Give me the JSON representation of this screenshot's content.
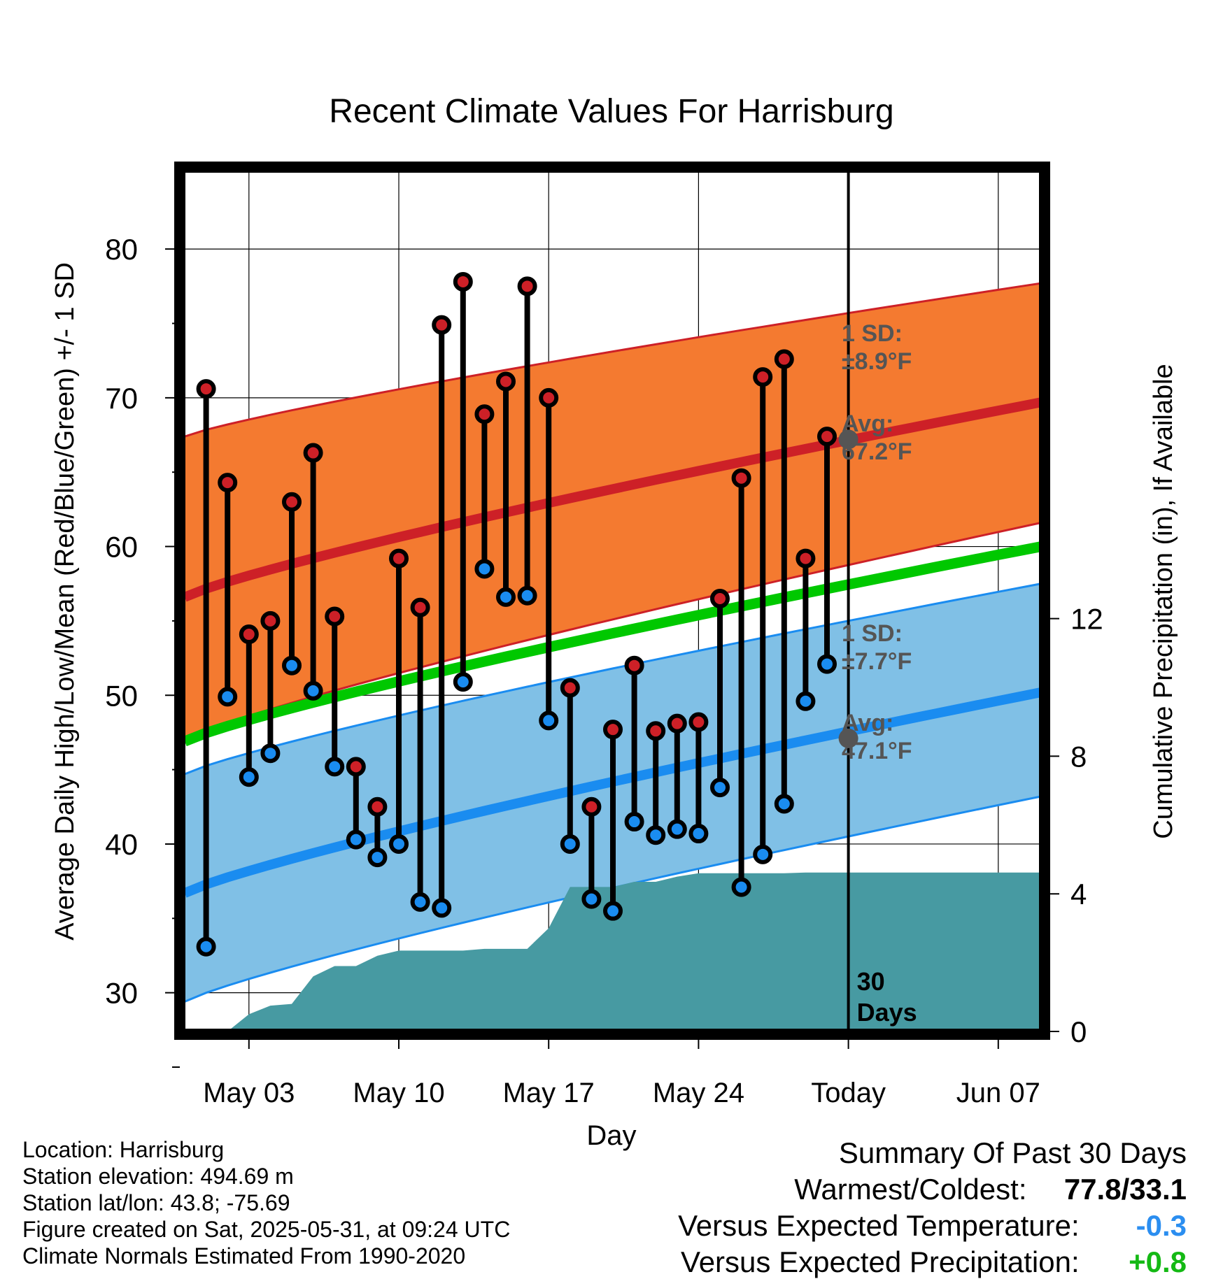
{
  "chart_data": {
    "type": "line",
    "title": "Recent Climate Values For Harrisburg",
    "xlabel": "Day",
    "ylabel_left": "Average Daily High/Low/Mean (Red/Blue/Green) +/- 1 SD",
    "ylabel_right": "Cumulative Precipitation (in), If Available",
    "x_range": [
      "2025-04-30",
      "2025-06-09"
    ],
    "ylim_left": [
      25,
      83
    ],
    "ylim_right": [
      0,
      23
    ],
    "x_ticks": [
      {
        "date": "2025-05-03",
        "label": "May 03"
      },
      {
        "date": "2025-05-10",
        "label": "May 10"
      },
      {
        "date": "2025-05-17",
        "label": "May 17"
      },
      {
        "date": "2025-05-24",
        "label": "May 24"
      },
      {
        "date": "2025-05-31",
        "label": "Today"
      },
      {
        "date": "2025-06-07",
        "label": "Jun 07"
      }
    ],
    "y_ticks_left": [
      30,
      40,
      50,
      60,
      70,
      80
    ],
    "y_ticks_right": [
      0,
      4,
      8,
      12
    ],
    "grid": true,
    "today": "2025-05-31",
    "today_label": "30 Days",
    "normals": {
      "dates": [
        "2025-04-30",
        "2025-06-09"
      ],
      "high_mean": [
        56.6,
        69.7
      ],
      "high_upper": [
        67.4,
        77.7
      ],
      "high_lower": [
        47.0,
        61.6
      ],
      "mean": [
        46.9,
        60.0
      ],
      "low_mean": [
        36.7,
        50.2
      ],
      "low_upper": [
        44.7,
        57.5
      ],
      "low_lower": [
        29.4,
        43.2
      ]
    },
    "normal_labels": {
      "high_sd": [
        "1 SD:",
        "±8.9°F"
      ],
      "high_avg": [
        "Avg:",
        "67.2°F"
      ],
      "low_sd": [
        "1 SD:",
        "±7.7°F"
      ],
      "low_avg": [
        "Avg:",
        "47.1°F"
      ]
    },
    "today_avg": {
      "high": 67.2,
      "low": 47.1
    },
    "series": [
      {
        "name": "High",
        "dates": [
          "2025-05-01",
          "2025-05-02",
          "2025-05-03",
          "2025-05-04",
          "2025-05-05",
          "2025-05-06",
          "2025-05-07",
          "2025-05-08",
          "2025-05-09",
          "2025-05-10",
          "2025-05-11",
          "2025-05-12",
          "2025-05-13",
          "2025-05-14",
          "2025-05-15",
          "2025-05-16",
          "2025-05-17",
          "2025-05-18",
          "2025-05-19",
          "2025-05-20",
          "2025-05-21",
          "2025-05-22",
          "2025-05-23",
          "2025-05-24",
          "2025-05-25",
          "2025-05-26",
          "2025-05-27",
          "2025-05-28",
          "2025-05-29",
          "2025-05-30"
        ],
        "values": [
          70.6,
          64.3,
          54.1,
          55.0,
          63.0,
          66.3,
          55.3,
          45.2,
          42.5,
          59.2,
          55.9,
          74.9,
          77.8,
          68.9,
          71.1,
          77.5,
          70.0,
          50.5,
          42.5,
          47.7,
          52.0,
          47.6,
          48.1,
          48.2,
          56.5,
          64.6,
          71.4,
          72.6,
          59.2,
          67.4
        ]
      },
      {
        "name": "Low",
        "dates": [
          "2025-05-01",
          "2025-05-02",
          "2025-05-03",
          "2025-05-04",
          "2025-05-05",
          "2025-05-06",
          "2025-05-07",
          "2025-05-08",
          "2025-05-09",
          "2025-05-10",
          "2025-05-11",
          "2025-05-12",
          "2025-05-13",
          "2025-05-14",
          "2025-05-15",
          "2025-05-16",
          "2025-05-17",
          "2025-05-18",
          "2025-05-19",
          "2025-05-20",
          "2025-05-21",
          "2025-05-22",
          "2025-05-23",
          "2025-05-24",
          "2025-05-25",
          "2025-05-26",
          "2025-05-27",
          "2025-05-28",
          "2025-05-29",
          "2025-05-30"
        ],
        "values": [
          33.1,
          49.9,
          44.5,
          46.1,
          52.0,
          50.3,
          45.2,
          40.3,
          39.1,
          40.0,
          36.1,
          35.7,
          50.9,
          58.5,
          56.6,
          56.7,
          48.3,
          40.0,
          36.3,
          35.5,
          41.5,
          40.6,
          41.0,
          40.7,
          43.8,
          37.1,
          39.3,
          42.7,
          49.6,
          52.1
        ]
      },
      {
        "name": "Cumulative Precipitation",
        "dates": [
          "2025-05-01",
          "2025-05-02",
          "2025-05-03",
          "2025-05-04",
          "2025-05-05",
          "2025-05-06",
          "2025-05-07",
          "2025-05-08",
          "2025-05-09",
          "2025-05-10",
          "2025-05-11",
          "2025-05-12",
          "2025-05-13",
          "2025-05-14",
          "2025-05-15",
          "2025-05-16",
          "2025-05-17",
          "2025-05-18",
          "2025-05-19",
          "2025-05-20",
          "2025-05-21",
          "2025-05-22",
          "2025-05-23",
          "2025-05-24",
          "2025-05-25",
          "2025-05-26",
          "2025-05-27",
          "2025-05-28",
          "2025-05-29",
          "2025-05-30",
          "2025-05-31",
          "2025-06-09"
        ],
        "values": [
          0.0,
          0.0,
          0.5,
          0.75,
          0.8,
          1.6,
          1.9,
          1.9,
          2.2,
          2.35,
          2.35,
          2.35,
          2.35,
          2.4,
          2.4,
          2.4,
          3.0,
          4.2,
          4.2,
          4.2,
          4.35,
          4.35,
          4.5,
          4.6,
          4.6,
          4.6,
          4.6,
          4.6,
          4.62,
          4.62,
          4.62,
          4.62
        ]
      }
    ]
  },
  "footer": {
    "location": "Location: Harrisburg",
    "elevation": "Station elevation: 494.69 m",
    "latlon": "Station lat/lon: 43.8; -75.69",
    "created": "Figure created on Sat, 2025-05-31, at 09:24 UTC",
    "normals": "Climate Normals Estimated From 1990-2020"
  },
  "summary": {
    "title": "Summary Of Past 30 Days",
    "warmest_coldest_label": "Warmest/Coldest:",
    "warmest_coldest_value": "77.8/33.1",
    "temp_label": "Versus Expected Temperature:",
    "temp_value": "-0.3",
    "precip_label": "Versus Expected Precipitation:",
    "precip_value": "+0.8"
  },
  "colors": {
    "high_band": "#f47a30",
    "high_line": "#cd2027",
    "low_band": "#80c0e6",
    "low_line": "#1a8cf0",
    "mean_line": "#00c800",
    "precip_fill": "#479aa2",
    "high_marker": "#cd2027",
    "low_marker": "#1a8cf0",
    "label_gray": "#555555",
    "warm_value": "#000000",
    "temp_value": "#2b8ef0",
    "precip_value": "#14b914"
  }
}
